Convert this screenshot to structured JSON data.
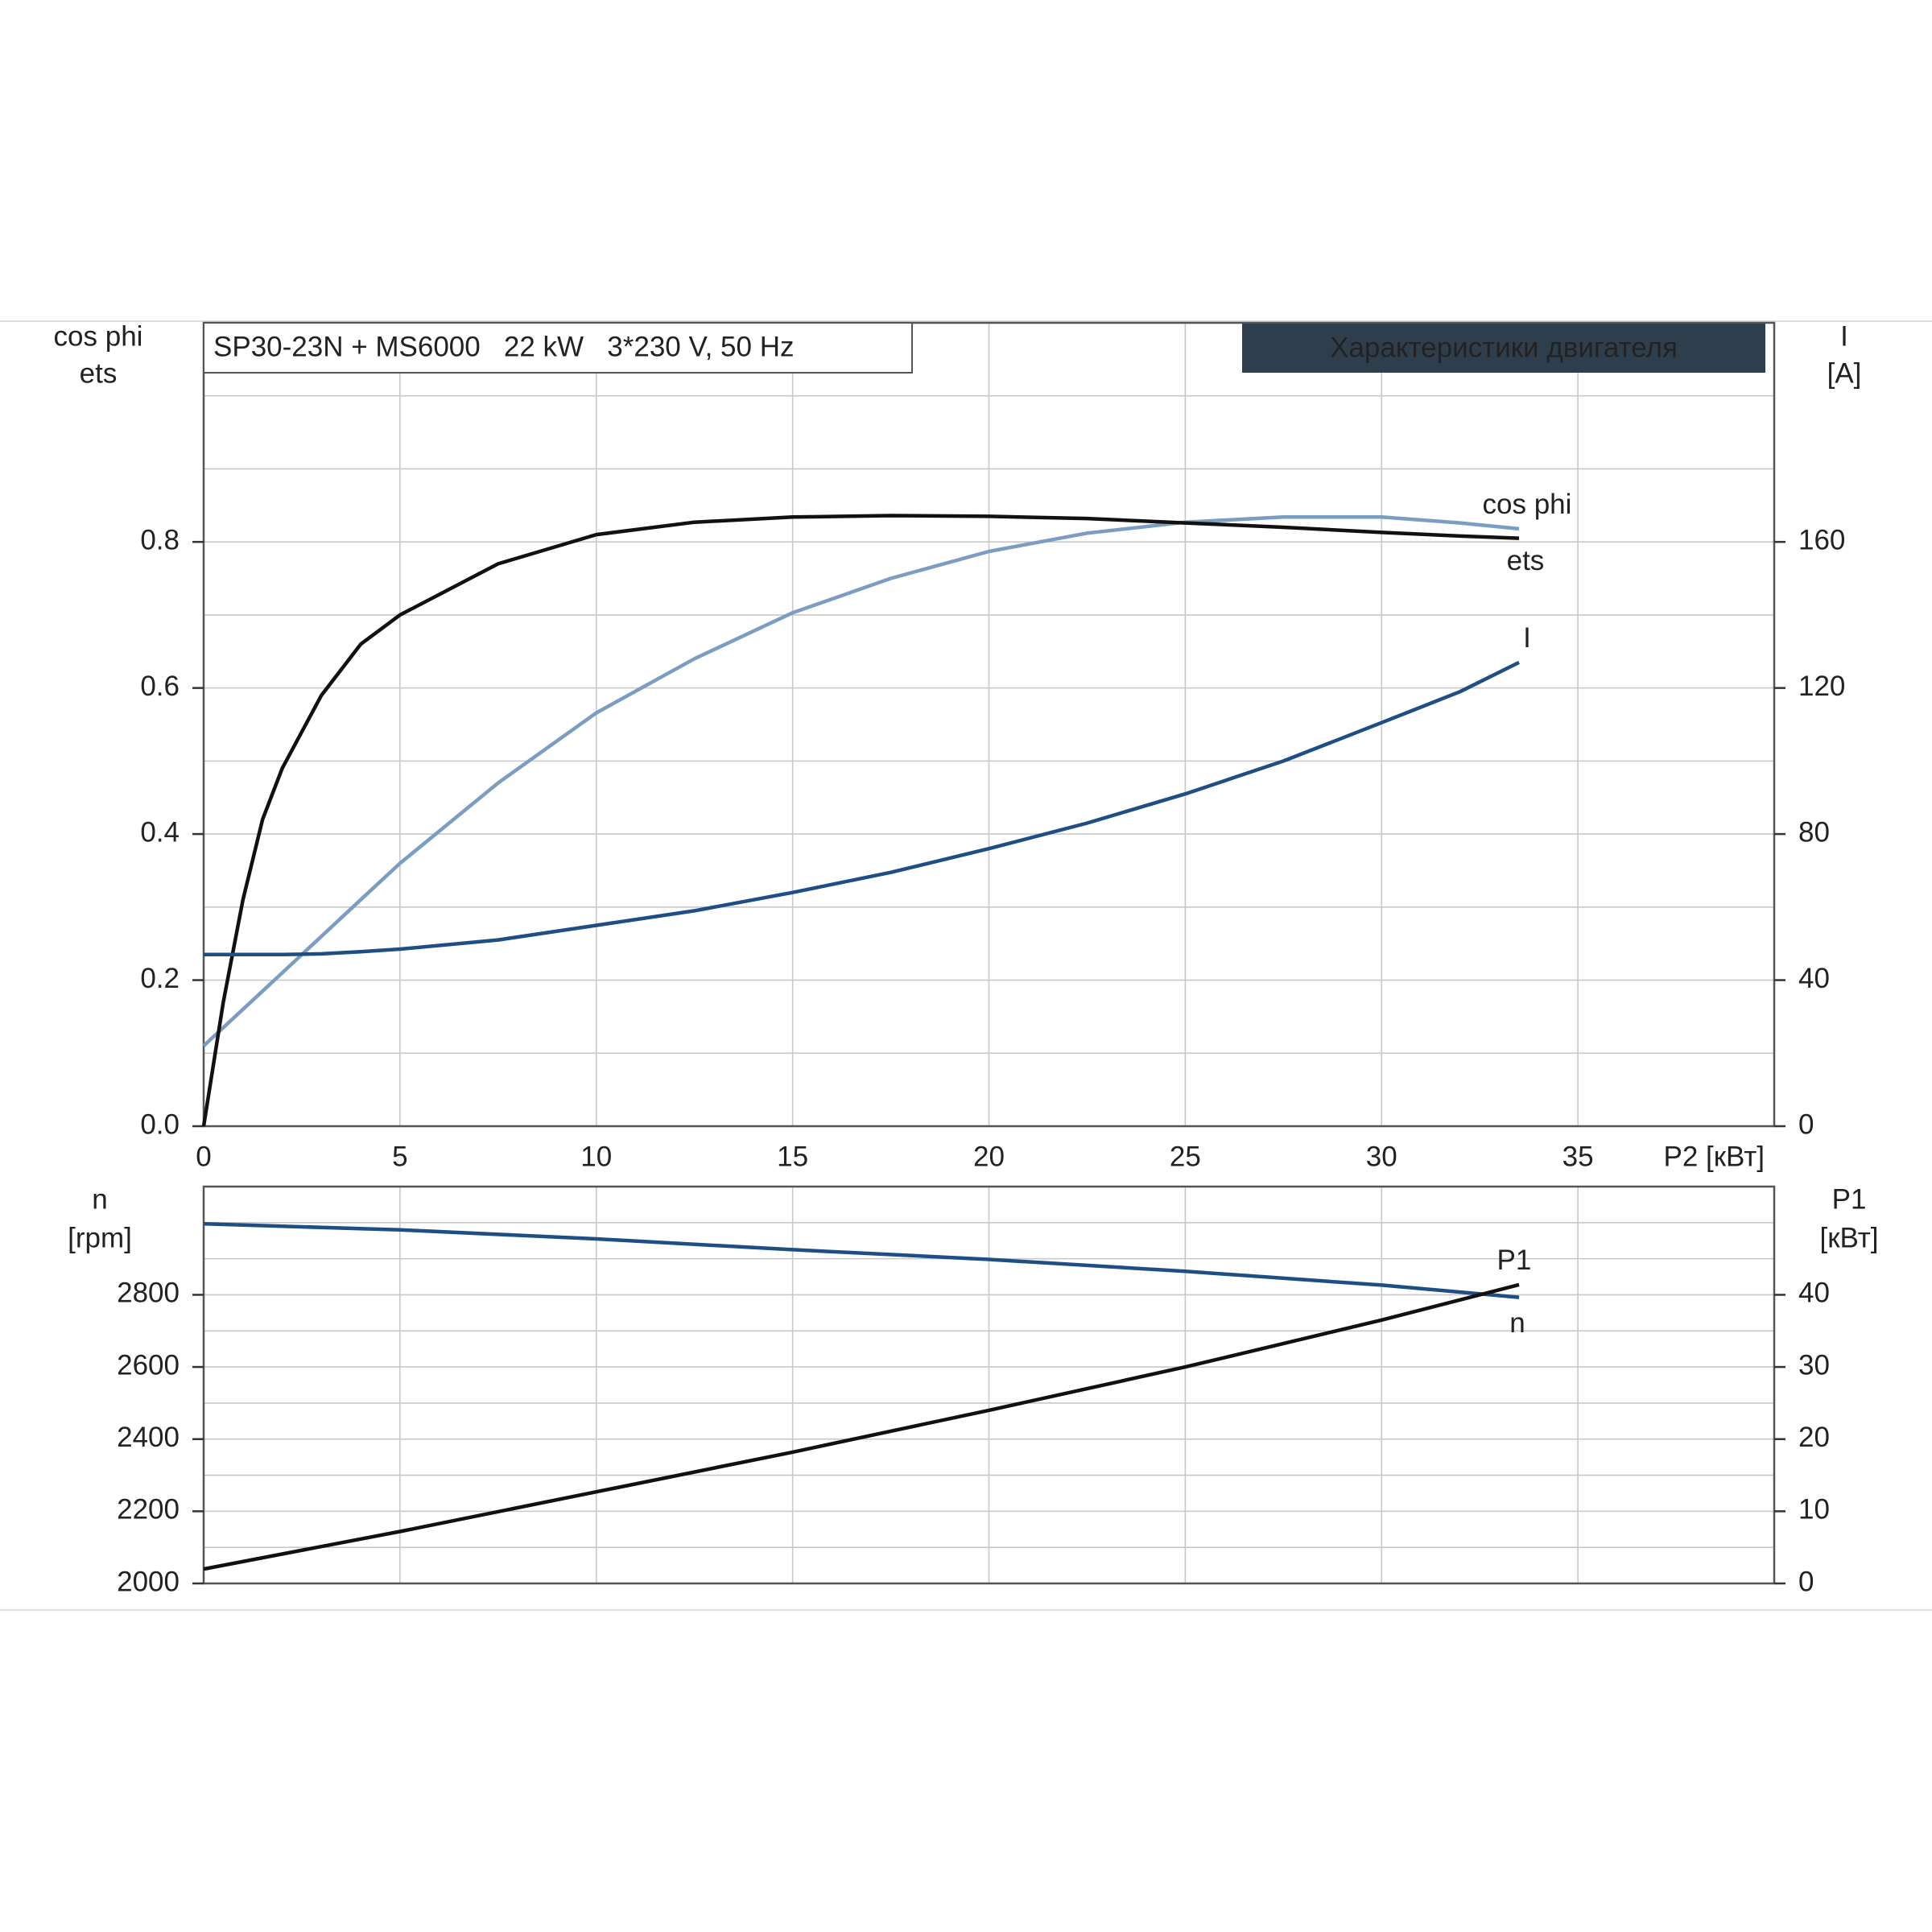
{
  "chart_data": [
    {
      "type": "line",
      "title": "SP30-23N + MS6000   22 kW   3*230 V, 50 Hz",
      "badge": "Характеристики двигателя",
      "x_label": "P2 [кВт]",
      "y_label": [
        "cos phi",
        "ets"
      ],
      "y2_label": [
        "I",
        "[A]"
      ],
      "x": [
        0,
        0.5,
        1,
        1.5,
        2,
        3,
        4,
        5,
        7.5,
        10,
        12.5,
        15,
        17.5,
        20,
        22.5,
        25,
        27.5,
        30,
        32,
        33.5
      ],
      "series": [
        {
          "name": "cos phi",
          "color": "#7b9dc2",
          "values": [
            0.11,
            0.135,
            0.16,
            0.185,
            0.21,
            0.26,
            0.31,
            0.36,
            0.47,
            0.566,
            0.64,
            0.703,
            0.75,
            0.787,
            0.812,
            0.827,
            0.834,
            0.834,
            0.826,
            0.818
          ]
        },
        {
          "name": "ets",
          "color": "#111111",
          "values": [
            0,
            0.17,
            0.31,
            0.42,
            0.49,
            0.59,
            0.66,
            0.7,
            0.77,
            0.81,
            0.827,
            0.834,
            0.836,
            0.835,
            0.832,
            0.826,
            0.82,
            0.813,
            0.808,
            0.805
          ]
        },
        {
          "name": "I",
          "color": "#1f4e85",
          "axis": "y2",
          "values": [
            47,
            47,
            47,
            47,
            47,
            47.2,
            47.8,
            48.5,
            51,
            55,
            59,
            64,
            69.5,
            76,
            83,
            91,
            100,
            110.5,
            119,
            127
          ]
        }
      ],
      "xlim": [
        0,
        40
      ],
      "xticks": [
        0,
        5,
        10,
        15,
        20,
        25,
        30,
        35
      ],
      "ylim": [
        0,
        1.1
      ],
      "yticks": [
        {
          "value": 0,
          "label": "0.0"
        },
        0.2,
        0.4,
        0.6,
        0.8
      ],
      "yminor": [
        0.1,
        0.3,
        0.5,
        0.7,
        0.9,
        1.0
      ],
      "y2lim": [
        0,
        220
      ],
      "y2ticks": [
        0,
        40,
        80,
        120,
        160
      ],
      "grid": true
    },
    {
      "type": "line",
      "y_label": [
        "n",
        "[rpm]"
      ],
      "y2_label": [
        "P1",
        "[кВт]"
      ],
      "x": [
        0,
        5,
        10,
        15,
        20,
        25,
        30,
        33.5
      ],
      "series": [
        {
          "name": "n",
          "color": "#1f4e85",
          "values": [
            2997,
            2980,
            2955,
            2925,
            2898,
            2865,
            2827,
            2793
          ]
        },
        {
          "name": "P1",
          "color": "#111111",
          "axis": "y2",
          "values": [
            2,
            7.2,
            12.7,
            18.2,
            24,
            30,
            36.5,
            41.4
          ]
        }
      ],
      "xlim": [
        0,
        40
      ],
      "xticks": [
        0,
        5,
        10,
        15,
        20,
        25,
        30,
        35
      ],
      "ylim": [
        2000,
        3100
      ],
      "yticks": [
        2000,
        2200,
        2400,
        2600,
        2800
      ],
      "yminor": [
        2100,
        2300,
        2500,
        2700,
        2900,
        3000
      ],
      "y2lim": [
        0,
        55
      ],
      "y2ticks": [
        0,
        10,
        20,
        30,
        40
      ],
      "grid": true
    }
  ]
}
